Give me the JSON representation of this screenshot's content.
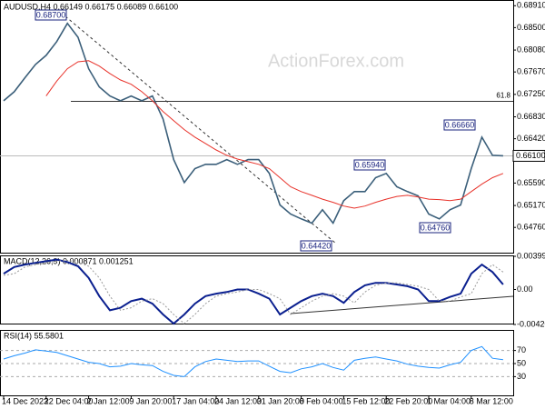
{
  "watermark": "ActionForex.com",
  "chart_data": [
    {
      "type": "line",
      "title": "AUDUSD,H4  0.66149 0.66175 0.66089 0.66100",
      "categories": [
        "14 Dec 2023",
        null,
        null,
        null,
        "22 Dec 04:00",
        null,
        null,
        null,
        "2 Jan 12:00",
        null,
        null,
        null,
        "9 Jan 20:00",
        null,
        null,
        null,
        "17 Jan 04:00",
        null,
        null,
        null,
        "24 Jan 12:00",
        null,
        null,
        null,
        "31 Jan 20:00",
        null,
        null,
        null,
        "8 Feb 04:00",
        null,
        null,
        null,
        "15 Feb 12:00",
        null,
        null,
        null,
        "22 Feb 20:00",
        null,
        null,
        null,
        "1 Mar 04:00",
        null,
        null,
        null,
        "8 Mar 12:00",
        null,
        null,
        null
      ],
      "series": [
        {
          "color": "#3b5f7a",
          "values": [
            0.6713,
            0.673,
            0.6756,
            0.6781,
            0.6798,
            0.6824,
            0.6858,
            0.6832,
            0.6773,
            0.6739,
            0.6722,
            0.6713,
            0.6722,
            0.6713,
            0.6722,
            0.6679,
            0.6603,
            0.656,
            0.6586,
            0.6594,
            0.6594,
            0.6603,
            0.6594,
            0.6603,
            0.6603,
            0.6577,
            0.6518,
            0.6501,
            0.6492,
            0.6484,
            0.6509,
            0.6484,
            0.6526,
            0.6543,
            0.6543,
            0.6569,
            0.6577,
            0.6552,
            0.6543,
            0.6535,
            0.6501,
            0.6492,
            0.6509,
            0.6518,
            0.6586,
            0.6645,
            0.6611,
            0.661
          ]
        },
        {
          "color": "#e8322a",
          "values": [
            null,
            null,
            null,
            null,
            0.6722,
            0.675,
            0.6773,
            0.6786,
            0.6788,
            0.6778,
            0.6764,
            0.6752,
            0.6744,
            0.673,
            0.6713,
            0.6693,
            0.6676,
            0.6659,
            0.6645,
            0.6633,
            0.6621,
            0.6611,
            0.6604,
            0.6599,
            0.6594,
            0.6586,
            0.6569,
            0.6552,
            0.6543,
            0.6536,
            0.6529,
            0.6523,
            0.6516,
            0.6512,
            0.6516,
            0.6523,
            0.6529,
            0.6534,
            0.6536,
            0.6533,
            0.6529,
            0.6528,
            0.6526,
            0.6529,
            0.6543,
            0.6557,
            0.6569,
            0.6577
          ]
        }
      ],
      "ylim": [
        0.6427,
        0.69
      ],
      "yticks": [
        {
          "value": 0.6891,
          "label": "0.68910"
        },
        {
          "value": 0.685,
          "label": "0.68500"
        },
        {
          "value": 0.6808,
          "label": "0.68080"
        },
        {
          "value": 0.6767,
          "label": "0.67670"
        },
        {
          "value": 0.6725,
          "label": "0.67250"
        },
        {
          "value": 0.6683,
          "label": "0.66830"
        },
        {
          "value": 0.6642,
          "label": "0.66420"
        },
        {
          "value": 0.6559,
          "label": "0.65590"
        },
        {
          "value": 0.6517,
          "label": "0.65170"
        },
        {
          "value": 0.6476,
          "label": "0.64760"
        }
      ],
      "fib": {
        "value": 0.6712,
        "label": "61.8"
      },
      "price_label": {
        "value": 0.661,
        "label": "0.66100"
      },
      "annotations": [
        "0.68700",
        "0.66660",
        "0.65940",
        "0.64420",
        "0.64760"
      ],
      "grid": false
    },
    {
      "type": "line",
      "title": "MACD(12,26,9) 0.000871 0.001251",
      "series": [
        {
          "color": "#0a1f8f",
          "values": [
            0.0019,
            0.0027,
            0.003,
            0.0032,
            0.0034,
            0.0036,
            0.0033,
            0.0028,
            0.0014,
            -0.0008,
            -0.0025,
            -0.0022,
            -0.0014,
            -0.0011,
            -0.0017,
            -0.003,
            -0.0041,
            -0.003,
            -0.0017,
            -0.0008,
            -0.0005,
            -0.0003,
            0.0,
            0.0,
            -0.0005,
            -0.0011,
            -0.003,
            -0.0022,
            -0.0014,
            -0.0008,
            -0.0005,
            -0.0008,
            -0.0016,
            -0.0003,
            0.0005,
            0.0008,
            0.0008,
            0.0006,
            0.0004,
            0.0,
            -0.0014,
            -0.0014,
            -0.0009,
            -0.0005,
            0.0019,
            0.003,
            0.0021,
            0.0006
          ]
        },
        {
          "color": "#9a9a9a",
          "values": [
            0.0017,
            0.0019,
            0.0027,
            0.003,
            0.0032,
            0.0034,
            0.0035,
            0.0033,
            0.0028,
            0.0014,
            -0.0008,
            -0.0025,
            -0.0022,
            -0.0014,
            -0.0011,
            -0.0017,
            -0.003,
            -0.0041,
            -0.003,
            -0.0017,
            -0.0008,
            -0.0005,
            -0.0003,
            0.0,
            0.0,
            -0.0005,
            -0.0011,
            -0.003,
            -0.0022,
            -0.0014,
            -0.0008,
            -0.0005,
            -0.0008,
            -0.0016,
            -0.0003,
            0.0005,
            0.0008,
            0.0008,
            0.0006,
            0.0004,
            0.0,
            -0.0014,
            -0.0014,
            -0.0009,
            -0.0005,
            0.0019,
            0.003,
            0.0021
          ]
        }
      ],
      "ylim": [
        -0.004206,
        0.00399
      ],
      "yticks": [
        0.00399,
        {
          "value": 0,
          "label": "0.00"
        },
        -0.004206
      ],
      "grid": false
    },
    {
      "type": "line",
      "title": "RSI(14) 55.5801",
      "series": [
        {
          "color": "#1e90ff",
          "values": [
            57,
            62,
            66,
            71,
            69,
            67,
            62,
            57,
            52,
            50,
            45,
            46,
            50,
            48,
            47,
            38,
            32,
            30,
            45,
            53,
            57,
            55,
            53,
            54,
            54,
            46,
            38,
            36,
            42,
            45,
            50,
            44,
            40,
            55,
            58,
            60,
            57,
            54,
            49,
            46,
            44,
            43,
            48,
            52,
            70,
            76,
            58,
            56
          ]
        }
      ],
      "ylim": [
        0,
        100
      ],
      "yticks": [
        70,
        50,
        30
      ],
      "grid": true
    }
  ]
}
